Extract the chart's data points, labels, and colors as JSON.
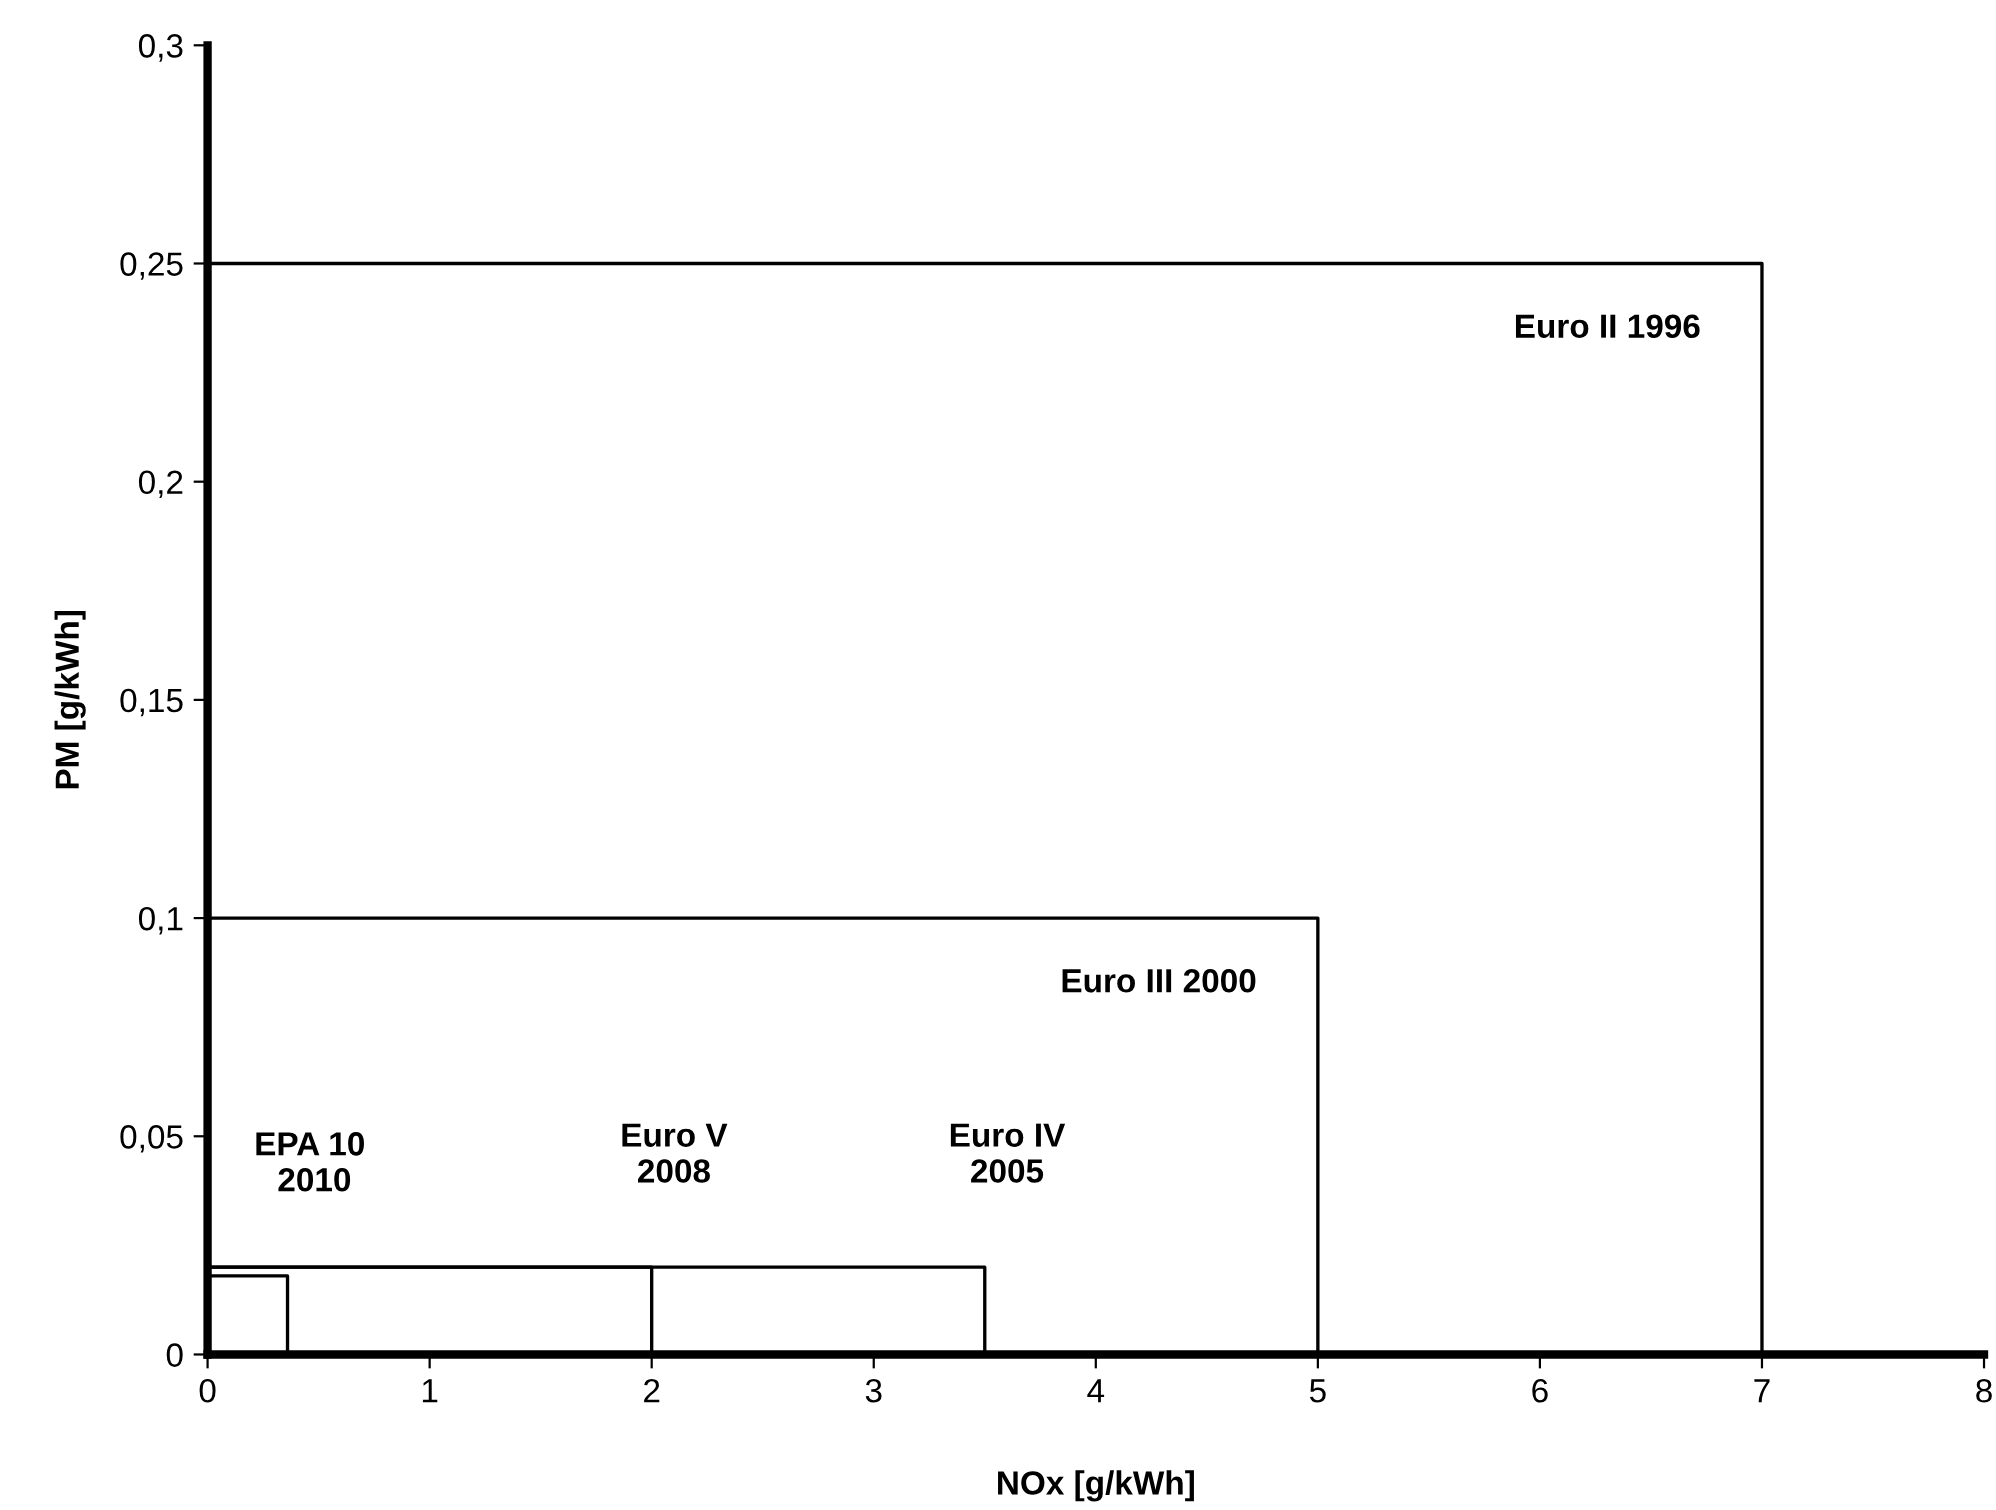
{
  "chart_data": {
    "type": "line",
    "xlabel": "NOx [g/kWh]",
    "ylabel": "PM [g/kWh]",
    "series": [
      {
        "name": "Euro II 1996",
        "color": "#000000",
        "x": [
          0,
          7,
          7
        ],
        "values": [
          0.25,
          0.25,
          0
        ]
      },
      {
        "name": "Euro III 2000",
        "color": "#000000",
        "x": [
          0,
          5,
          5
        ],
        "values": [
          0.1,
          0.1,
          0
        ]
      },
      {
        "name": "Euro IV\n2005",
        "color": "#000000",
        "x": [
          0,
          3.5,
          3.5
        ],
        "values": [
          0.02,
          0.02,
          0
        ]
      },
      {
        "name": "Euro V\n2008",
        "color": "#000000",
        "x": [
          0,
          2,
          2
        ],
        "values": [
          0.02,
          0.02,
          0
        ]
      },
      {
        "name": "EPA 10\n 2010",
        "color": "#000000",
        "x": [
          0,
          0.36,
          0.36
        ],
        "values": [
          0.018,
          0.018,
          0
        ]
      }
    ],
    "xlim": [
      0,
      8
    ],
    "xticks": [
      0,
      1,
      2,
      3,
      4,
      5,
      6,
      7,
      8
    ],
    "ylim": [
      0,
      0.3
    ],
    "yticks": [
      {
        "value": 0,
        "label": "0"
      },
      {
        "value": 0.05,
        "label": "0,05"
      },
      {
        "value": 0.1,
        "label": "0,1"
      },
      {
        "value": 0.15,
        "label": "0,15"
      },
      {
        "value": 0.2,
        "label": "0,2"
      },
      {
        "value": 0.25,
        "label": "0,25"
      },
      {
        "value": 0.3,
        "label": "0,3"
      }
    ],
    "grid": false,
    "legend": false,
    "marker": "none",
    "line_style": "solid"
  }
}
